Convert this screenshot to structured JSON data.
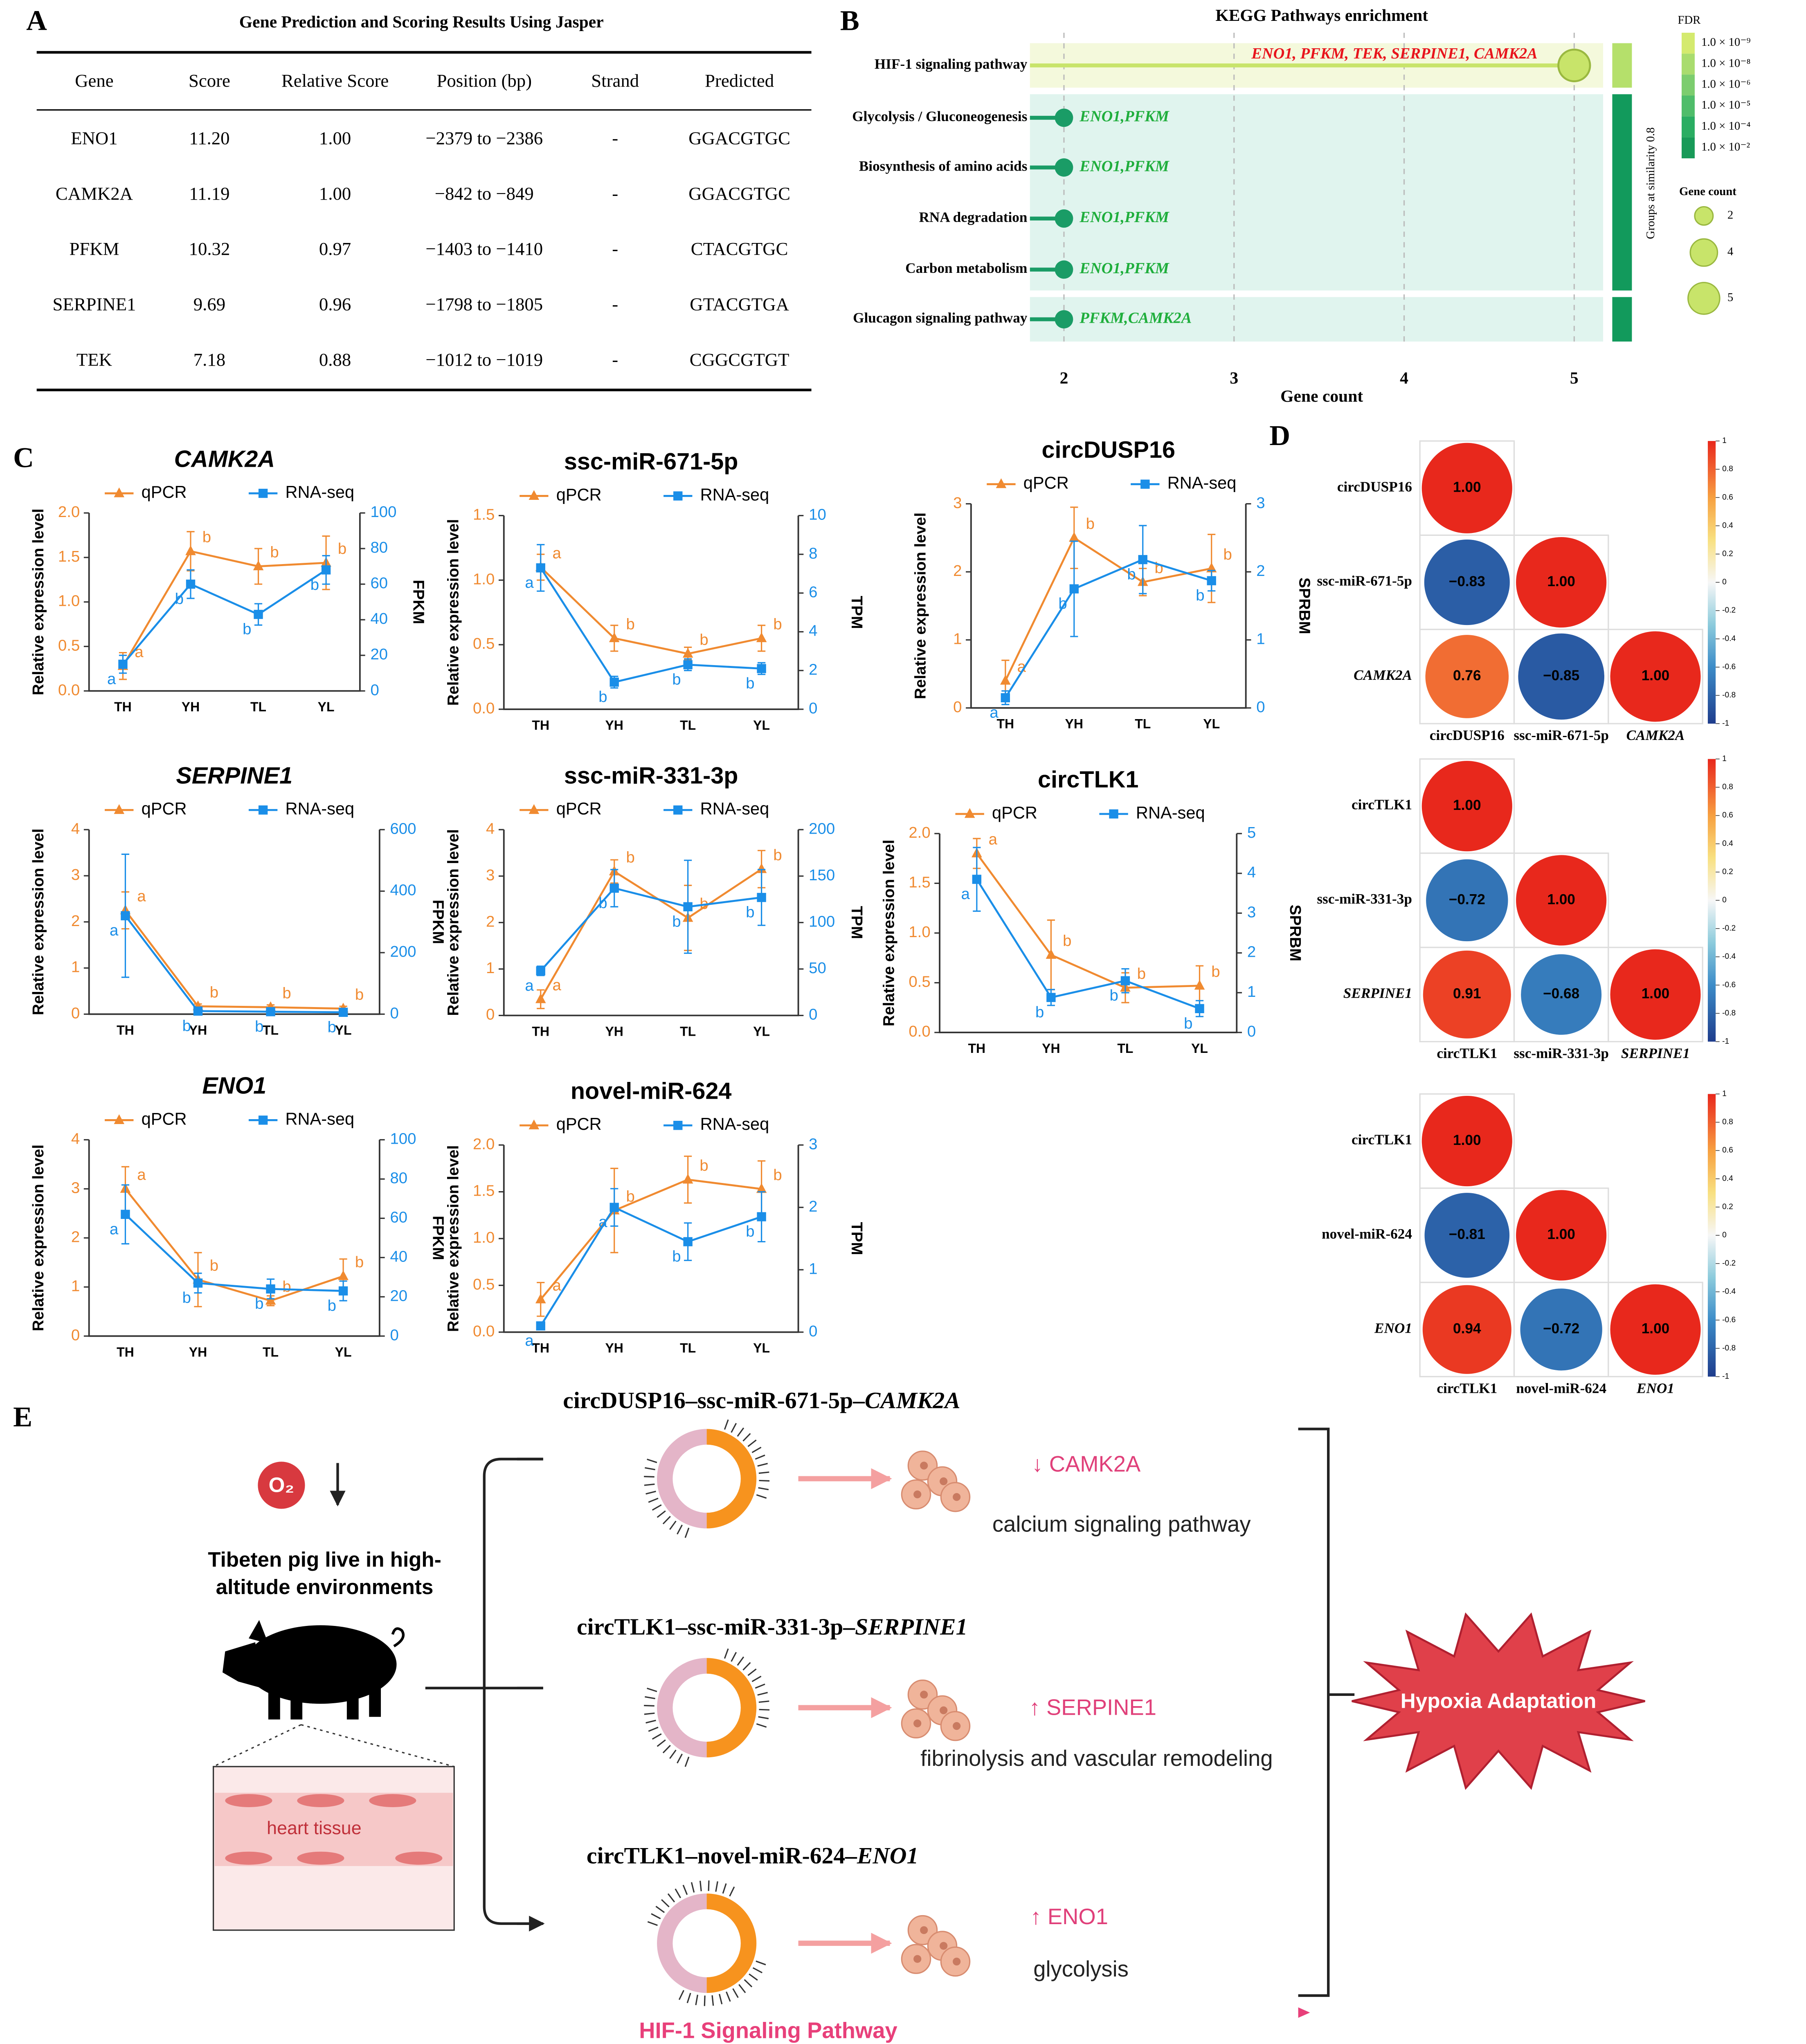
{
  "panels": [
    "A",
    "B",
    "C",
    "D",
    "E"
  ],
  "table": {
    "title": "Gene Prediction and Scoring Results Using Jasper",
    "header": [
      "Gene",
      "Score",
      "Relative Score",
      "Position (bp)",
      "Strand",
      "Predicted"
    ],
    "rows": [
      [
        "ENO1",
        "11.20",
        "1.00",
        "−2379 to −2386",
        "-",
        "GGACGTGC"
      ],
      [
        "CAMK2A",
        "11.19",
        "1.00",
        "−842 to −849",
        "-",
        "GGACGTGC"
      ],
      [
        "PFKM",
        "10.32",
        "0.97",
        "−1403 to −1410",
        "-",
        "CTACGTGC"
      ],
      [
        "SERPINE1",
        "9.69",
        "0.96",
        "−1798 to −1805",
        "-",
        "GTACGTGA"
      ],
      [
        "TEK",
        "7.18",
        "0.88",
        "−1012 to −1019",
        "-",
        "CGGCGTGT"
      ]
    ]
  },
  "chart_data": [
    {
      "type": "bubble",
      "title": "KEGG Pathways enrichment",
      "x_label": "Gene count",
      "categories": [
        "HIF-1 signaling pathway",
        "Glycolysis / Gluconeogenesis",
        "Biosynthesis of amino acids",
        "RNA degradation",
        "Carbon metabolism",
        "Glucagon signaling pathway"
      ],
      "values": [
        5,
        2,
        2,
        2,
        2,
        2
      ],
      "gene_labels": [
        "ENO1, PFKM, TEK, SERPINE1, CAMK2A",
        "ENO1,PFKM",
        "ENO1,PFKM",
        "ENO1,PFKM",
        "ENO1,PFKM",
        "PFKM,CAMK2A"
      ],
      "label_colors": [
        "#e8141c",
        "#1fae3c",
        "#1fae3c",
        "#1fae3c",
        "#1fae3c",
        "#1fae3c"
      ],
      "colors": [
        "#c8e46a",
        "#1a9c66",
        "#1a9c66",
        "#1a9c66",
        "#1a9c66",
        "#1a9c66"
      ],
      "xlim": [
        1.8,
        5.17
      ],
      "xticks": [
        2,
        3,
        4,
        5
      ],
      "grid": true,
      "group_label": "Groups at similarity 0.8",
      "color_legend": {
        "title": "FDR",
        "labels": [
          "1.0 × 10⁻⁹",
          "1.0 × 10⁻⁸",
          "1.0 × 10⁻⁶",
          "1.0 × 10⁻⁵",
          "1.0 × 10⁻⁴",
          "1.0 × 10⁻²"
        ],
        "colors": [
          "#d4ea6e",
          "#a9dc6e",
          "#7ccd6e",
          "#4fbd6a",
          "#2aad62",
          "#189a58"
        ]
      },
      "size_legend": {
        "title": "Gene count",
        "values": [
          2,
          4,
          5
        ]
      }
    },
    {
      "type": "line",
      "title": "CAMK2A",
      "title_italic": true,
      "categories": [
        "TH",
        "YH",
        "TL",
        "YL"
      ],
      "y_label": "Relative expression level",
      "y2_label": "FPKM",
      "ylim": [
        0,
        2
      ],
      "yticks": [
        {
          "value": 0,
          "label": "0.0"
        },
        0.5,
        {
          "value": 1,
          "label": "1.0"
        },
        1.5,
        {
          "value": 2,
          "label": "2.0"
        }
      ],
      "y2lim": [
        0,
        100
      ],
      "y2ticks": [
        0,
        20,
        40,
        60,
        80,
        100
      ],
      "series": [
        {
          "name": "qPCR",
          "color": "#f08a30",
          "marker": "triangle",
          "values": [
            0.28,
            1.57,
            1.4,
            1.44
          ],
          "errors": [
            0.15,
            0.22,
            0.2,
            0.3
          ],
          "letters": [
            "a",
            "b",
            "b",
            "b"
          ]
        },
        {
          "name": "RNA-seq",
          "color": "#1a8ee8",
          "marker": "square",
          "axis": "y2",
          "values": [
            15,
            60,
            43,
            68
          ],
          "errors": [
            5,
            8,
            6,
            8
          ],
          "letters": [
            "a",
            "b",
            "b",
            "b"
          ]
        }
      ]
    },
    {
      "type": "line",
      "title": "ssc-miR-671-5p",
      "title_italic": false,
      "categories": [
        "TH",
        "YH",
        "TL",
        "YL"
      ],
      "y_label": "Relative expression level",
      "y2_label": "TPM",
      "ylim": [
        0,
        1.5
      ],
      "yticks": [
        {
          "value": 0,
          "label": "0.0"
        },
        0.5,
        {
          "value": 1,
          "label": "1.0"
        },
        1.5
      ],
      "y2lim": [
        0,
        10
      ],
      "y2ticks": [
        0,
        2,
        4,
        6,
        8,
        10
      ],
      "series": [
        {
          "name": "qPCR",
          "color": "#f08a30",
          "marker": "triangle",
          "values": [
            1.1,
            0.55,
            0.43,
            0.55
          ],
          "errors": [
            0.1,
            0.1,
            0.05,
            0.1
          ],
          "letters": [
            "a",
            "b",
            "b",
            "b"
          ]
        },
        {
          "name": "RNA-seq",
          "color": "#1a8ee8",
          "marker": "square",
          "axis": "y2",
          "values": [
            7.3,
            1.4,
            2.3,
            2.1
          ],
          "errors": [
            1.2,
            0.3,
            0.3,
            0.3
          ],
          "letters": [
            "a",
            "b",
            "b",
            "b"
          ]
        }
      ]
    },
    {
      "type": "line",
      "title": "circDUSP16",
      "title_italic": false,
      "categories": [
        "TH",
        "YH",
        "TL",
        "YL"
      ],
      "y_label": "Relative expression level",
      "y2_label": "SPRBM",
      "ylim": [
        0,
        3
      ],
      "yticks": [
        0,
        1,
        2,
        3
      ],
      "y2lim": [
        0,
        3
      ],
      "y2ticks": [
        0,
        1,
        2,
        3
      ],
      "series": [
        {
          "name": "qPCR",
          "color": "#f08a30",
          "marker": "triangle",
          "values": [
            0.4,
            2.5,
            1.85,
            2.05
          ],
          "errors": [
            0.3,
            0.45,
            0.2,
            0.5
          ],
          "letters": [
            "a",
            "b",
            "b",
            "b"
          ]
        },
        {
          "name": "RNA-seq",
          "color": "#1a8ee8",
          "marker": "square",
          "axis": "y2",
          "values": [
            0.15,
            1.75,
            2.18,
            1.87
          ],
          "errors": [
            0.1,
            0.7,
            0.5,
            0.15
          ],
          "letters": [
            "a",
            "b",
            "b",
            "b"
          ]
        }
      ]
    },
    {
      "type": "line",
      "title": "SERPINE1",
      "title_italic": true,
      "categories": [
        "TH",
        "YH",
        "TL",
        "YL"
      ],
      "y_label": "Relative expression level",
      "y2_label": "FPKM",
      "ylim": [
        0,
        4
      ],
      "yticks": [
        0,
        1,
        2,
        3,
        4
      ],
      "y2lim": [
        0,
        600
      ],
      "y2ticks": [
        0,
        200,
        400,
        600
      ],
      "series": [
        {
          "name": "qPCR",
          "color": "#f08a30",
          "marker": "triangle",
          "values": [
            2.25,
            0.17,
            0.15,
            0.12
          ],
          "errors": [
            0.4,
            0.05,
            0.05,
            0.05
          ],
          "letters": [
            "a",
            "b",
            "b",
            "b"
          ]
        },
        {
          "name": "RNA-seq",
          "color": "#1a8ee8",
          "marker": "square",
          "axis": "y2",
          "values": [
            320,
            10,
            8,
            6
          ],
          "errors": [
            200,
            5,
            5,
            3
          ],
          "letters": [
            "a",
            "b",
            "b",
            "b"
          ]
        }
      ]
    },
    {
      "type": "line",
      "title": "ssc-miR-331-3p",
      "title_italic": false,
      "categories": [
        "TH",
        "YH",
        "TL",
        "YL"
      ],
      "y_label": "Relative expression level",
      "y2_label": "TPM",
      "ylim": [
        0,
        4
      ],
      "yticks": [
        0,
        1,
        2,
        3,
        4
      ],
      "y2lim": [
        0,
        200
      ],
      "y2ticks": [
        0,
        50,
        100,
        150,
        200
      ],
      "series": [
        {
          "name": "qPCR",
          "color": "#f08a30",
          "marker": "triangle",
          "values": [
            0.35,
            3.1,
            2.1,
            3.15
          ],
          "errors": [
            0.2,
            0.25,
            0.7,
            0.4
          ],
          "letters": [
            "a",
            "b",
            "b",
            "b"
          ]
        },
        {
          "name": "RNA-seq",
          "color": "#1a8ee8",
          "marker": "square",
          "axis": "y2",
          "values": [
            48,
            137,
            117,
            127
          ],
          "errors": [
            5,
            20,
            50,
            30
          ],
          "letters": [
            "a",
            "b",
            "b",
            "b"
          ]
        }
      ]
    },
    {
      "type": "line",
      "title": "circTLK1",
      "title_italic": false,
      "categories": [
        "TH",
        "YH",
        "TL",
        "YL"
      ],
      "y_label": "Relative expression level",
      "y2_label": "SPRBM",
      "ylim": [
        0,
        2
      ],
      "yticks": [
        {
          "value": 0,
          "label": "0.0"
        },
        0.5,
        {
          "value": 1,
          "label": "1.0"
        },
        1.5,
        {
          "value": 2,
          "label": "2.0"
        }
      ],
      "y2lim": [
        0,
        5
      ],
      "y2ticks": [
        0,
        1,
        2,
        3,
        4,
        5
      ],
      "series": [
        {
          "name": "qPCR",
          "color": "#f08a30",
          "marker": "triangle",
          "values": [
            1.8,
            0.78,
            0.45,
            0.47
          ],
          "errors": [
            0.15,
            0.35,
            0.15,
            0.2
          ],
          "letters": [
            "a",
            "b",
            "b",
            "b"
          ]
        },
        {
          "name": "RNA-seq",
          "color": "#1a8ee8",
          "marker": "square",
          "axis": "y2",
          "values": [
            3.85,
            0.88,
            1.3,
            0.6
          ],
          "errors": [
            0.8,
            0.2,
            0.3,
            0.2
          ],
          "letters": [
            "a",
            "b",
            "b",
            "b"
          ]
        }
      ]
    },
    {
      "type": "line",
      "title": "ENO1",
      "title_italic": true,
      "categories": [
        "TH",
        "YH",
        "TL",
        "YL"
      ],
      "y_label": "Relative expression level",
      "y2_label": "FPKM",
      "ylim": [
        0,
        4
      ],
      "yticks": [
        0,
        1,
        2,
        3,
        4
      ],
      "y2lim": [
        0,
        100
      ],
      "y2ticks": [
        0,
        20,
        40,
        60,
        80,
        100
      ],
      "series": [
        {
          "name": "qPCR",
          "color": "#f08a30",
          "marker": "triangle",
          "values": [
            3,
            1.15,
            0.72,
            1.22
          ],
          "errors": [
            0.45,
            0.55,
            0.1,
            0.35
          ],
          "letters": [
            "a",
            "b",
            "b",
            "b"
          ]
        },
        {
          "name": "RNA-seq",
          "color": "#1a8ee8",
          "marker": "square",
          "axis": "y2",
          "values": [
            62,
            27,
            24,
            23
          ],
          "errors": [
            15,
            5,
            5,
            5
          ],
          "letters": [
            "a",
            "b",
            "b",
            "b"
          ]
        }
      ]
    },
    {
      "type": "line",
      "title": "novel-miR-624",
      "title_italic": false,
      "categories": [
        "TH",
        "YH",
        "TL",
        "YL"
      ],
      "y_label": "Relative expression level",
      "y2_label": "TPM",
      "ylim": [
        0,
        2
      ],
      "yticks": [
        {
          "value": 0,
          "label": "0.0"
        },
        0.5,
        {
          "value": 1,
          "label": "1.0"
        },
        1.5,
        {
          "value": 2,
          "label": "2.0"
        }
      ],
      "y2lim": [
        0,
        3
      ],
      "y2ticks": [
        0,
        1,
        2,
        3
      ],
      "series": [
        {
          "name": "qPCR",
          "color": "#f08a30",
          "marker": "triangle",
          "values": [
            0.35,
            1.3,
            1.63,
            1.53
          ],
          "errors": [
            0.18,
            0.45,
            0.25,
            0.3
          ],
          "letters": [
            "a",
            "b",
            "b",
            "b"
          ]
        },
        {
          "name": "RNA-seq",
          "color": "#1a8ee8",
          "marker": "square",
          "axis": "y2",
          "values": [
            0.1,
            2,
            1.45,
            1.85
          ],
          "errors": [
            0.05,
            0.3,
            0.3,
            0.4
          ],
          "letters": [
            "a",
            "a",
            "b",
            "b"
          ]
        }
      ]
    },
    {
      "type": "corrplot",
      "labels": [
        "circDUSP16",
        "ssc-miR-671-5p",
        "CAMK2A"
      ],
      "italic_labels": [
        false,
        false,
        true
      ],
      "values": [
        [
          1
        ],
        [
          -0.83,
          1
        ],
        [
          0.76,
          -0.85,
          1
        ]
      ],
      "value_labels": [
        [
          "1.00"
        ],
        [
          "−0.83",
          "1.00"
        ],
        [
          "0.76",
          "−0.85",
          "1.00"
        ]
      ],
      "clim": [
        -1,
        1
      ],
      "cticks": [
        1,
        0.8,
        0.6,
        0.4,
        0.2,
        0,
        -0.2,
        -0.4,
        -0.6,
        -0.8,
        -1
      ]
    },
    {
      "type": "corrplot",
      "labels": [
        "circTLK1",
        "ssc-miR-331-3p",
        "SERPINE1"
      ],
      "italic_labels": [
        false,
        false,
        true
      ],
      "values": [
        [
          1
        ],
        [
          -0.72,
          1
        ],
        [
          0.91,
          -0.68,
          1
        ]
      ],
      "value_labels": [
        [
          "1.00"
        ],
        [
          "−0.72",
          "1.00"
        ],
        [
          "0.91",
          "−0.68",
          "1.00"
        ]
      ],
      "clim": [
        -1,
        1
      ],
      "cticks": [
        1,
        0.8,
        0.6,
        0.4,
        0.2,
        0,
        -0.2,
        -0.4,
        -0.6,
        -0.8,
        -1
      ]
    },
    {
      "type": "corrplot",
      "labels": [
        "circTLK1",
        "novel-miR-624",
        "ENO1"
      ],
      "italic_labels": [
        false,
        false,
        true
      ],
      "values": [
        [
          1
        ],
        [
          -0.81,
          1
        ],
        [
          0.94,
          -0.72,
          1
        ]
      ],
      "value_labels": [
        [
          "1.00"
        ],
        [
          "−0.81",
          "1.00"
        ],
        [
          "0.94",
          "−0.72",
          "1.00"
        ]
      ],
      "clim": [
        -1,
        1
      ],
      "cticks": [
        1,
        0.8,
        0.6,
        0.4,
        0.2,
        0,
        -0.2,
        -0.4,
        -0.6,
        -0.8,
        -1
      ]
    }
  ],
  "diagram": {
    "o2": "O₂",
    "caption": [
      "Tibeten pig live in high-",
      "altitude environments"
    ],
    "tissue": "heart tissue",
    "axes": [
      {
        "chain": "circDUSP16–ssc-miR-671-5p–",
        "gene": "CAMK2A",
        "effect": "↓ CAMK2A",
        "process": "calcium signaling pathway"
      },
      {
        "chain": "circTLK1–ssc-miR-331-3p–",
        "gene": "SERPINE1",
        "effect": "↑ SERPINE1",
        "process": "fibrinolysis and vascular remodeling"
      },
      {
        "chain": "circTLK1–novel-miR-624–",
        "gene": "ENO1",
        "effect": "↑ ENO1",
        "process": "glycolysis"
      }
    ],
    "outcome": "Hypoxia Adaptation",
    "pathway": "HIF-1 Signaling Pathway"
  }
}
